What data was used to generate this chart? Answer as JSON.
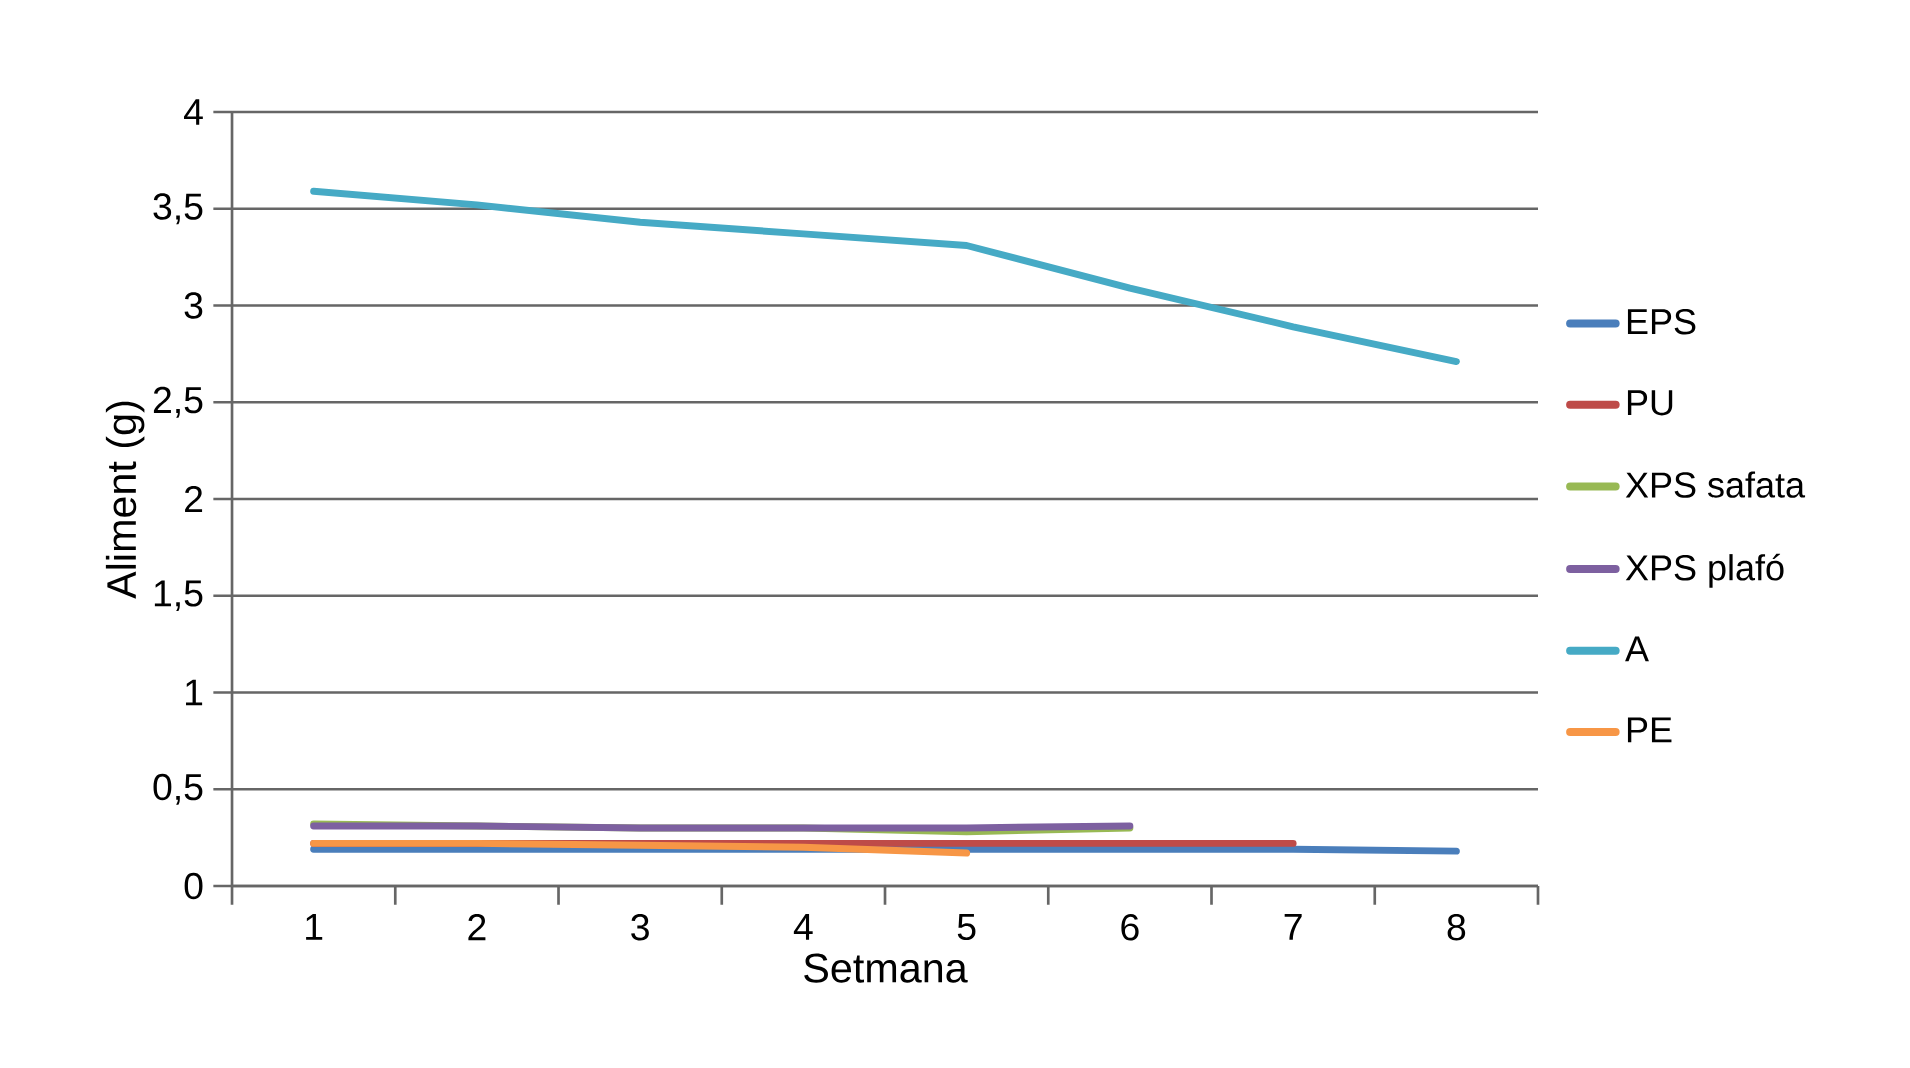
{
  "chart_data": {
    "type": "line",
    "xlabel": "Setmana",
    "ylabel": "Aliment (g)",
    "categories": [
      "1",
      "2",
      "3",
      "4",
      "5",
      "6",
      "7",
      "8"
    ],
    "ylim": [
      0,
      4
    ],
    "yticks": [
      0,
      {
        "value": 0.5,
        "label": "0,5"
      },
      1,
      {
        "value": 1.5,
        "label": "1,5"
      },
      2,
      {
        "value": 2.5,
        "label": "2,5"
      },
      3,
      {
        "value": 3.5,
        "label": "3,5"
      },
      4
    ],
    "grid": "y",
    "legend": "right",
    "marker": "none",
    "line_style": "solid",
    "series": [
      {
        "name": "EPS",
        "color": "#4a7ebb",
        "values": [
          0.19,
          0.19,
          0.19,
          0.19,
          0.19,
          0.19,
          0.19,
          0.18
        ]
      },
      {
        "name": "PU",
        "color": "#be4b48",
        "values": [
          0.22,
          0.22,
          0.22,
          0.22,
          0.22,
          0.22,
          0.22,
          null
        ]
      },
      {
        "name": "XPS safata",
        "color": "#98b954",
        "values": [
          0.32,
          0.31,
          0.3,
          0.3,
          0.28,
          0.3,
          null,
          null
        ]
      },
      {
        "name": "XPS plafó",
        "color": "#7d60a0",
        "values": [
          0.31,
          0.31,
          0.3,
          0.3,
          0.3,
          0.31,
          null,
          null
        ]
      },
      {
        "name": "A",
        "color": "#46aac5",
        "values": [
          3.59,
          3.52,
          3.43,
          3.37,
          3.31,
          3.09,
          2.89,
          2.71
        ]
      },
      {
        "name": "PE",
        "color": "#f79646",
        "values": [
          0.22,
          0.22,
          0.21,
          0.2,
          0.17,
          null,
          null,
          null
        ]
      }
    ]
  }
}
